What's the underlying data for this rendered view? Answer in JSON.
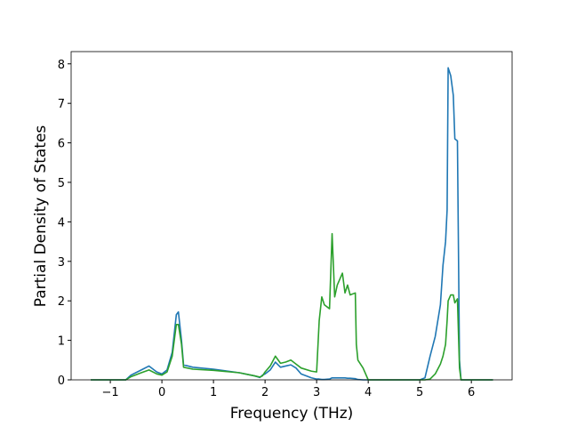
{
  "chart_data": {
    "type": "line",
    "xlabel": "Frequency (THz)",
    "ylabel": "Partial Density of States",
    "x": [
      -1.38,
      -0.7,
      -0.6,
      -0.4,
      -0.25,
      -0.1,
      0,
      0.1,
      0.2,
      0.28,
      0.32,
      0.38,
      0.42,
      0.6,
      1.0,
      1.5,
      1.8,
      1.9,
      1.95,
      2.0,
      2.1,
      2.2,
      2.3,
      2.4,
      2.5,
      2.6,
      2.7,
      2.9,
      3.0,
      3.05,
      3.1,
      3.15,
      3.25,
      3.3,
      3.35,
      3.4,
      3.5,
      3.55,
      3.6,
      3.65,
      3.75,
      3.77,
      3.8,
      3.9,
      4.0,
      4.5,
      5.0,
      5.1,
      5.2,
      5.3,
      5.4,
      5.45,
      5.5,
      5.53,
      5.55,
      5.6,
      5.65,
      5.68,
      5.73,
      5.77,
      5.8,
      6.42
    ],
    "series": [
      {
        "color": "#1f77b4",
        "values": [
          0,
          0,
          0.12,
          0.25,
          0.35,
          0.2,
          0.15,
          0.25,
          0.7,
          1.65,
          1.72,
          1.0,
          0.38,
          0.32,
          0.27,
          0.18,
          0.1,
          0.06,
          0.12,
          0.15,
          0.25,
          0.45,
          0.32,
          0.35,
          0.38,
          0.3,
          0.15,
          0.05,
          0.02,
          0.02,
          0.01,
          0.01,
          0.02,
          0.05,
          0.05,
          0.05,
          0.05,
          0.05,
          0.04,
          0.04,
          0.03,
          0.02,
          0.01,
          0,
          0,
          0,
          0,
          0.05,
          0.6,
          1.1,
          1.9,
          2.9,
          3.5,
          4.3,
          7.9,
          7.7,
          7.2,
          6.1,
          6.05,
          0.5,
          0,
          0
        ]
      },
      {
        "color": "#2ca02c",
        "values": [
          0,
          0,
          0.08,
          0.18,
          0.25,
          0.15,
          0.12,
          0.2,
          0.6,
          1.4,
          1.4,
          0.9,
          0.32,
          0.27,
          0.24,
          0.18,
          0.1,
          0.07,
          0.1,
          0.2,
          0.35,
          0.6,
          0.42,
          0.45,
          0.5,
          0.4,
          0.3,
          0.22,
          0.2,
          1.5,
          2.1,
          1.9,
          1.8,
          3.7,
          2.1,
          2.4,
          2.7,
          2.2,
          2.4,
          2.15,
          2.2,
          0.9,
          0.5,
          0.3,
          0,
          0,
          0,
          0,
          0.02,
          0.15,
          0.4,
          0.6,
          0.9,
          1.5,
          2.0,
          2.15,
          2.15,
          1.95,
          2.05,
          0.3,
          0,
          0
        ]
      }
    ],
    "xlim": [
      -1.76,
      6.79
    ],
    "xticks": [
      {
        "value": -1,
        "label": "−1"
      },
      0,
      1,
      2,
      3,
      4,
      5,
      6
    ],
    "ylim": [
      0,
      8.31
    ],
    "yticks": [
      0,
      1,
      2,
      3,
      4,
      5,
      6,
      7,
      8
    ]
  }
}
